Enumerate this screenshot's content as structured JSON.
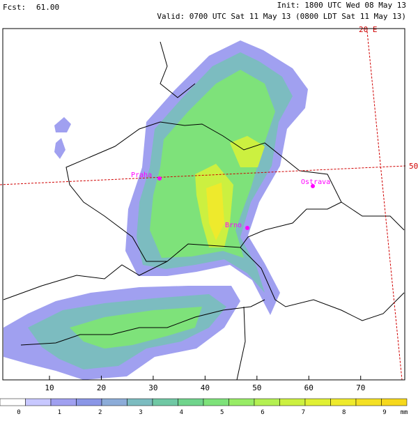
{
  "header": {
    "fcst_label": "Fcst:",
    "fcst_value": "61.00",
    "init": "Init: 1800 UTC Wed 08 May 13",
    "valid": "Valid: 0700 UTC Sat 11 May 13 (0800 LDT Sat 11 May 13)"
  },
  "map": {
    "xlim": [
      1,
      78.5
    ],
    "xticks": [
      10,
      20,
      30,
      40,
      50,
      60,
      70
    ],
    "meridian_label": "20 E",
    "parallel_label": "50",
    "cities": [
      "Praha",
      "Ostrava",
      "Brno"
    ]
  },
  "colorbar": {
    "colors": [
      "#ffffff",
      "#c8c8ff",
      "#a0a0f0",
      "#8a96e6",
      "#8cacd8",
      "#7cbcc0",
      "#70c8a4",
      "#70d48c",
      "#7ee27a",
      "#98ec66",
      "#b4f052",
      "#ccf040",
      "#e0f034",
      "#eeea2c",
      "#f4e024",
      "#f6d81c"
    ],
    "range": [
      0,
      9
    ],
    "ticks": [
      0,
      1,
      2,
      3,
      4,
      5,
      6,
      7,
      8,
      9
    ],
    "unit": "mm"
  }
}
